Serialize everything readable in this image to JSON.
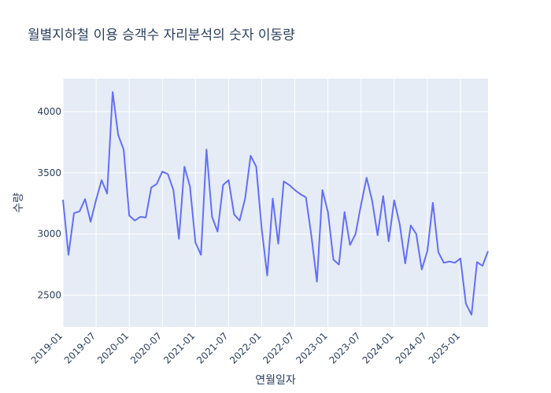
{
  "chart_data": {
    "type": "line",
    "title": "월별지하철 이용 승객수 자리분석의 숫자 이동량",
    "xlabel": "연월일자",
    "ylabel": "수량",
    "x_tick_labels": [
      "2019-01",
      "2019-07",
      "2020-01",
      "2020-07",
      "2021-01",
      "2021-07",
      "2022-01",
      "2022-07",
      "2023-01",
      "2023-07",
      "2024-01",
      "2024-07",
      "2025-01"
    ],
    "y_tick_labels": [
      "2500",
      "3000",
      "3500",
      "4000"
    ],
    "y_ticks": [
      2500,
      3000,
      3500,
      4000
    ],
    "ylim": [
      2240,
      4270
    ],
    "grid": true,
    "legend": "none",
    "series": [
      {
        "color": "#636efa",
        "x": [
          "2019-01",
          "2019-02",
          "2019-03",
          "2019-04",
          "2019-05",
          "2019-06",
          "2019-07",
          "2019-08",
          "2019-09",
          "2019-10",
          "2019-11",
          "2019-12",
          "2020-01",
          "2020-02",
          "2020-03",
          "2020-04",
          "2020-05",
          "2020-06",
          "2020-07",
          "2020-08",
          "2020-09",
          "2020-10",
          "2020-11",
          "2020-12",
          "2021-01",
          "2021-02",
          "2021-03",
          "2021-04",
          "2021-05",
          "2021-06",
          "2021-07",
          "2021-08",
          "2021-09",
          "2021-10",
          "2021-11",
          "2021-12",
          "2022-01",
          "2022-02",
          "2022-03",
          "2022-04",
          "2022-05",
          "2022-06",
          "2022-07",
          "2022-08",
          "2022-09",
          "2022-10",
          "2022-11",
          "2022-12",
          "2023-01",
          "2023-02",
          "2023-03",
          "2023-04",
          "2023-05",
          "2023-06",
          "2023-07",
          "2023-08",
          "2023-09",
          "2023-10",
          "2023-11",
          "2023-12",
          "2024-01",
          "2024-02",
          "2024-03",
          "2024-04",
          "2024-05",
          "2024-06",
          "2024-07",
          "2024-08",
          "2024-09",
          "2024-10",
          "2024-11",
          "2024-12",
          "2025-01",
          "2025-02",
          "2025-03",
          "2025-04",
          "2025-05",
          "2025-06"
        ],
        "y": [
          3280,
          2830,
          3170,
          3185,
          3285,
          3100,
          3280,
          3440,
          3330,
          4160,
          3810,
          3690,
          3150,
          3110,
          3140,
          3135,
          3380,
          3410,
          3510,
          3490,
          3360,
          2960,
          3550,
          3390,
          2930,
          2830,
          3690,
          3140,
          3020,
          3400,
          3440,
          3160,
          3110,
          3290,
          3640,
          3550,
          3040,
          2660,
          3290,
          2920,
          3430,
          3400,
          3360,
          3325,
          3300,
          2985,
          2610,
          3360,
          3180,
          2790,
          2750,
          3180,
          2910,
          3000,
          3240,
          3460,
          3275,
          2990,
          3310,
          2940,
          3275,
          3080,
          2760,
          3070,
          3000,
          2710,
          2860,
          3255,
          2850,
          2765,
          2775,
          2765,
          2800,
          2430,
          2340,
          2770,
          2740,
          2860
        ]
      }
    ]
  }
}
